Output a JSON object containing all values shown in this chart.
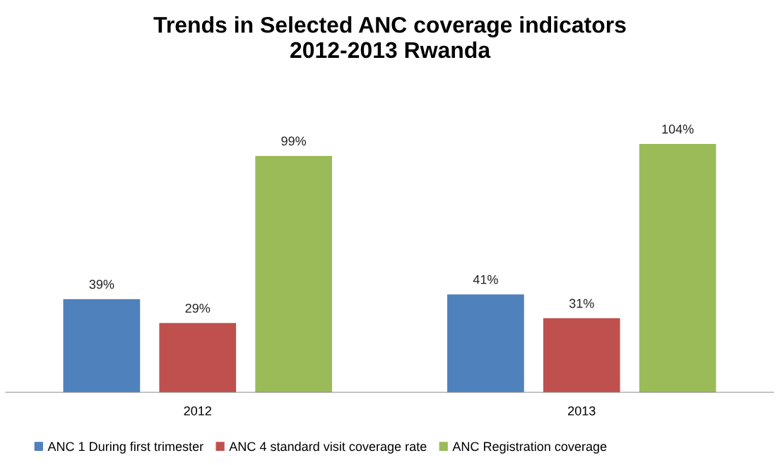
{
  "chart_data": {
    "type": "bar",
    "title": "Trends in Selected ANC coverage indicators\n2012-2013 Rwanda",
    "categories": [
      "2012",
      "2013"
    ],
    "series": [
      {
        "name": "ANC 1 During first trimester",
        "color": "#4f81bd",
        "values": [
          39,
          41
        ],
        "value_labels": [
          "39%",
          "41%"
        ]
      },
      {
        "name": "ANC 4 standard visit coverage rate",
        "color": "#c0504d",
        "values": [
          29,
          31
        ],
        "value_labels": [
          "29%",
          "31%"
        ]
      },
      {
        "name": "ANC Registration coverage",
        "color": "#9bbb59",
        "values": [
          99,
          104
        ],
        "value_labels": [
          "99%",
          "104%"
        ]
      }
    ],
    "legend": "bottom",
    "grid": false,
    "tick_labels": "x"
  }
}
